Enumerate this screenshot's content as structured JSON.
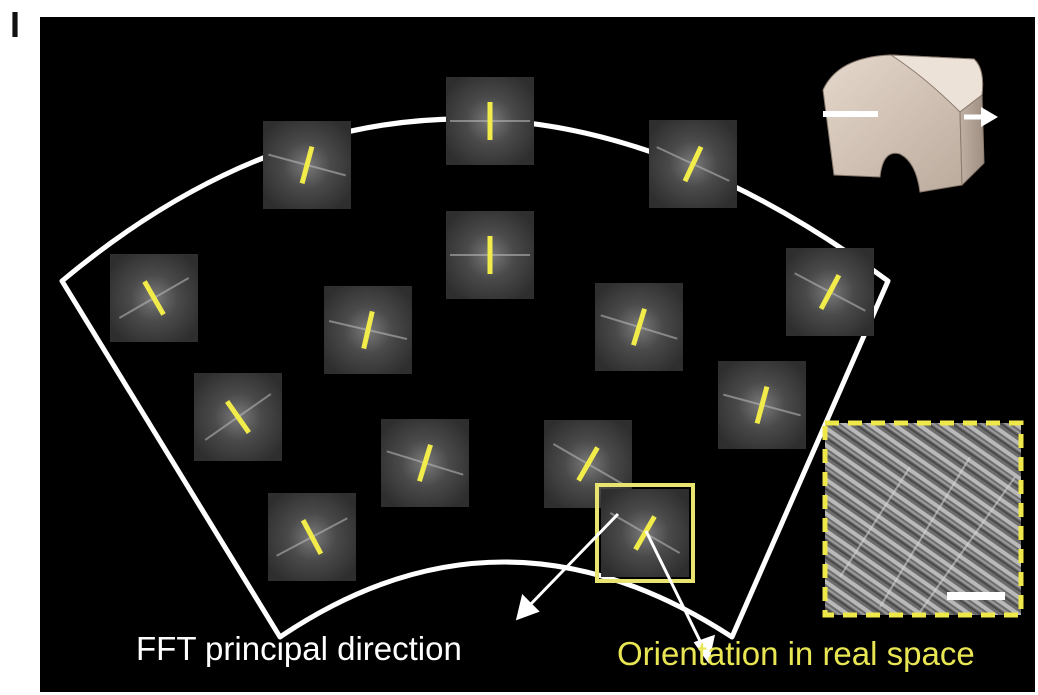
{
  "panel_label": "I",
  "captions": {
    "fft_direction": "FFT principal direction",
    "real_space_orientation": "Orientation in real space"
  },
  "fft_tiles": [
    {
      "id": "tile-1",
      "orientation_deg": 90
    },
    {
      "id": "tile-2",
      "orientation_deg": 75
    },
    {
      "id": "tile-3",
      "orientation_deg": 65
    },
    {
      "id": "tile-4",
      "orientation_deg": 90
    },
    {
      "id": "tile-5",
      "orientation_deg": 120
    },
    {
      "id": "tile-6",
      "orientation_deg": 77
    },
    {
      "id": "tile-7",
      "orientation_deg": 73
    },
    {
      "id": "tile-8",
      "orientation_deg": 62
    },
    {
      "id": "tile-9",
      "orientation_deg": 125
    },
    {
      "id": "tile-10",
      "orientation_deg": 75
    },
    {
      "id": "tile-11",
      "orientation_deg": 73
    },
    {
      "id": "tile-12",
      "orientation_deg": 60
    },
    {
      "id": "tile-13",
      "orientation_deg": 118
    },
    {
      "id": "tile-14",
      "orientation_deg": 60,
      "highlighted": true
    }
  ],
  "colors": {
    "background": "#000000",
    "outline": "#ffffff",
    "indicator": "#f2ec4a",
    "highlight_box": "#e8e470",
    "tile": "#3f3f3f"
  },
  "icons": {
    "three_d_model": "curved-block-3d-icon",
    "arrow": "right-arrow-icon",
    "sem_inset": "sem-micrograph-inset"
  }
}
